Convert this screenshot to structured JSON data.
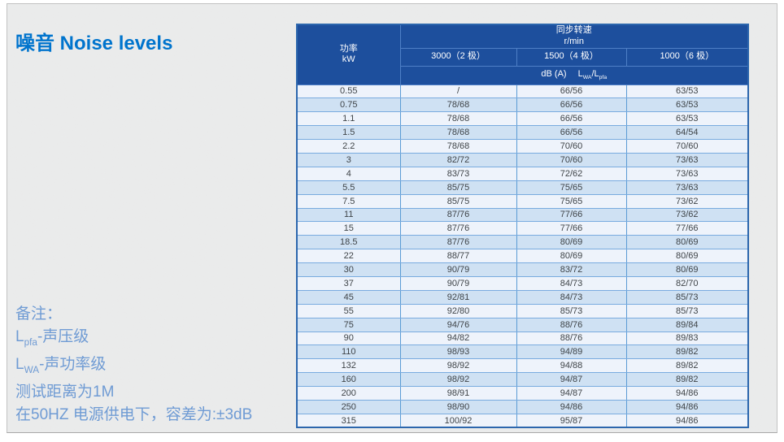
{
  "page": {
    "title": "噪音 Noise levels"
  },
  "colors": {
    "title_blue": "#0074cd",
    "header_bg": "#1d4f9d",
    "table_outer_border": "#2c66ad",
    "cell_border": "#5b9bd5",
    "row_odd_bg": "#eef3fb",
    "row_even_bg": "#cfe1f3",
    "notes_blue": "#6f9bd4",
    "slide_bg": "#ebecec"
  },
  "table": {
    "header": {
      "power_label": "功率",
      "power_unit": "kW",
      "speed_label": "同步转速",
      "speed_unit": "r/min",
      "pole_columns": [
        "3000（2 极）",
        "1500（4 极）",
        "1000（6 极）"
      ],
      "db_label": "dB (A)",
      "f_base1": "L",
      "f_sub1": "WA",
      "f_slash": "/",
      "f_base2": "L",
      "f_sub2": "pfa"
    },
    "rows": [
      {
        "kw": "0.55",
        "p2": "/",
        "p4": "66/56",
        "p6": "63/53"
      },
      {
        "kw": "0.75",
        "p2": "78/68",
        "p4": "66/56",
        "p6": "63/53"
      },
      {
        "kw": "1.1",
        "p2": "78/68",
        "p4": "66/56",
        "p6": "63/53"
      },
      {
        "kw": "1.5",
        "p2": "78/68",
        "p4": "66/56",
        "p6": "64/54"
      },
      {
        "kw": "2.2",
        "p2": "78/68",
        "p4": "70/60",
        "p6": "70/60"
      },
      {
        "kw": "3",
        "p2": "82/72",
        "p4": "70/60",
        "p6": "73/63"
      },
      {
        "kw": "4",
        "p2": "83/73",
        "p4": "72/62",
        "p6": "73/63"
      },
      {
        "kw": "5.5",
        "p2": "85/75",
        "p4": "75/65",
        "p6": "73/63"
      },
      {
        "kw": "7.5",
        "p2": "85/75",
        "p4": "75/65",
        "p6": "73/62"
      },
      {
        "kw": "11",
        "p2": "87/76",
        "p4": "77/66",
        "p6": "73/62"
      },
      {
        "kw": "15",
        "p2": "87/76",
        "p4": "77/66",
        "p6": "77/66"
      },
      {
        "kw": "18.5",
        "p2": "87/76",
        "p4": "80/69",
        "p6": "80/69"
      },
      {
        "kw": "22",
        "p2": "88/77",
        "p4": "80/69",
        "p6": "80/69"
      },
      {
        "kw": "30",
        "p2": "90/79",
        "p4": "83/72",
        "p6": "80/69"
      },
      {
        "kw": "37",
        "p2": "90/79",
        "p4": "84/73",
        "p6": "82/70"
      },
      {
        "kw": "45",
        "p2": "92/81",
        "p4": "84/73",
        "p6": "85/73"
      },
      {
        "kw": "55",
        "p2": "92/80",
        "p4": "85/73",
        "p6": "85/73"
      },
      {
        "kw": "75",
        "p2": "94/76",
        "p4": "88/76",
        "p6": "89/84"
      },
      {
        "kw": "90",
        "p2": "94/82",
        "p4": "88/76",
        "p6": "89/83"
      },
      {
        "kw": "110",
        "p2": "98/93",
        "p4": "94/89",
        "p6": "89/82"
      },
      {
        "kw": "132",
        "p2": "98/92",
        "p4": "94/88",
        "p6": "89/82"
      },
      {
        "kw": "160",
        "p2": "98/92",
        "p4": "94/87",
        "p6": "89/82"
      },
      {
        "kw": "200",
        "p2": "98/91",
        "p4": "94/87",
        "p6": "94/86"
      },
      {
        "kw": "250",
        "p2": "98/90",
        "p4": "94/86",
        "p6": "94/86"
      },
      {
        "kw": "315",
        "p2": "100/92",
        "p4": "95/87",
        "p6": "94/86"
      }
    ]
  },
  "notes": {
    "heading": "备注：",
    "lpfa_base": "L",
    "lpfa_sub": "pfa",
    "lpfa_rest": "-声压级",
    "lwa_base": "L",
    "lwa_sub": "WA",
    "lwa_rest": "-声功率级",
    "distance": "测试距离为1M",
    "tolerance": "在50HZ 电源供电下，容差为:±3dB"
  }
}
